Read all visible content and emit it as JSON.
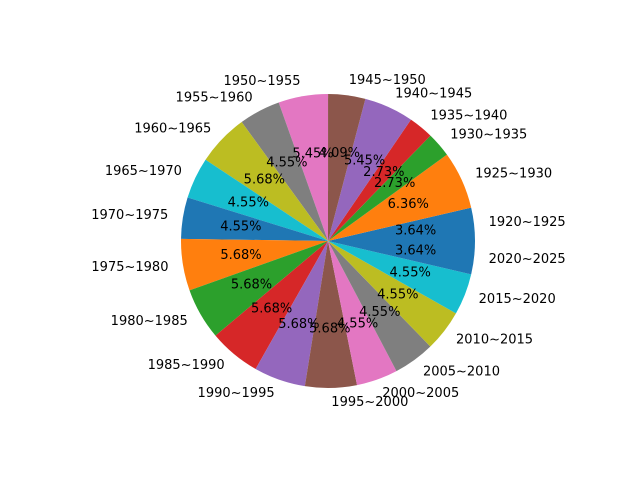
{
  "chart_data": {
    "type": "pie",
    "title": "",
    "start_angle_deg": 0,
    "direction": "counterclockwise",
    "categories": [
      "1920~1925",
      "1925~1930",
      "1930~1935",
      "1935~1940",
      "1940~1945",
      "1945~1950",
      "1950~1955",
      "1955~1960",
      "1960~1965",
      "1965~1970",
      "1970~1975",
      "1975~1980",
      "1980~1985",
      "1985~1990",
      "1990~1995",
      "1995~2000",
      "2000~2005",
      "2005~2010",
      "2010~2015",
      "2015~2020",
      "2020~2025"
    ],
    "values": [
      3.64,
      6.36,
      2.73,
      2.73,
      5.45,
      4.09,
      5.45,
      4.55,
      5.68,
      4.55,
      4.55,
      5.68,
      5.68,
      5.68,
      5.68,
      5.68,
      4.55,
      4.55,
      4.55,
      4.55,
      3.64
    ],
    "value_labels": [
      "3.64%",
      "6.36%",
      "2.73%",
      "2.73%",
      "5.45%",
      "4.09%",
      "5.45%",
      "4.55%",
      "5.68%",
      "4.55%",
      "4.55%",
      "5.68%",
      "5.68%",
      "5.68%",
      "5.68%",
      "5.68%",
      "4.55%",
      "4.55%",
      "4.55%",
      "4.55%",
      "3.64%"
    ],
    "colors": [
      "#1f77b4",
      "#ff7f0e",
      "#2ca02c",
      "#d62728",
      "#9467bd",
      "#8c564b",
      "#e377c2",
      "#7f7f7f",
      "#bcbd22",
      "#17becf",
      "#1f77b4",
      "#ff7f0e",
      "#2ca02c",
      "#d62728",
      "#9467bd",
      "#8c564b",
      "#e377c2",
      "#7f7f7f",
      "#bcbd22",
      "#17becf",
      "#1f77b4"
    ]
  }
}
